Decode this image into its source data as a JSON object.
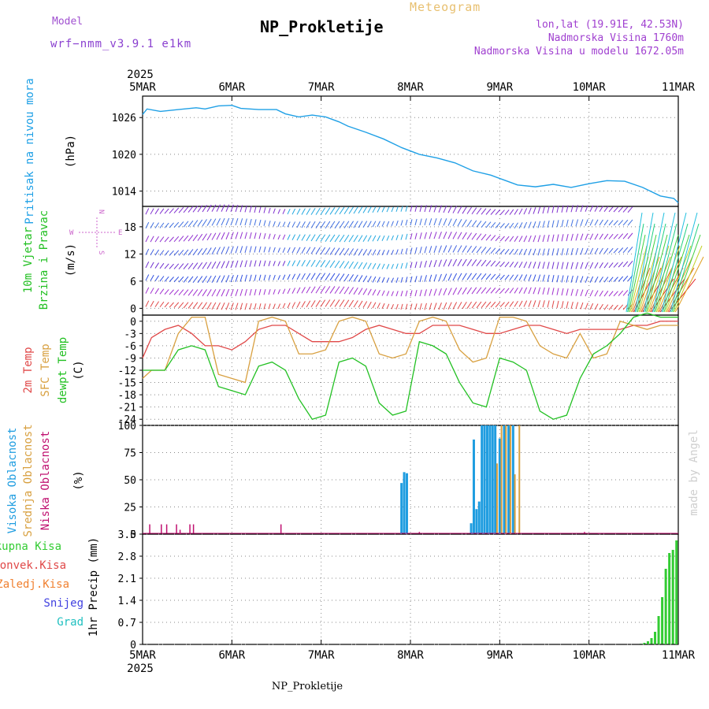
{
  "header": {
    "title": "NP_Prokletije",
    "meteogram_label": "Meteogram",
    "model_label": "Model",
    "model_version": "wrf−nmm_v3.9.1  e1km",
    "lonlat": "lon,lat (19.91E, 42.53N)",
    "altitude": "Nadmorska Visina 1760m",
    "model_altitude": "Nadmorska Visina u modelu 1672.05m"
  },
  "footer": {
    "station": "NP_Prokletije"
  },
  "watermark": "made by Angel",
  "time_axis": {
    "year": "2025",
    "ticks": [
      "5MAR",
      "6MAR",
      "7MAR",
      "8MAR",
      "9MAR",
      "10MAR",
      "11MAR"
    ]
  },
  "colors": {
    "pressure": "#1fa0e6",
    "temp": "#e04848",
    "sfc": "#d8a040",
    "dewpt": "#22c022",
    "high_cloud": "#1f9de0",
    "mid_cloud": "#d8a040",
    "low_cloud": "#c01070",
    "precip_total": "#33cc33",
    "wind_dir_label": "#cc66cc"
  },
  "chart_data": [
    {
      "type": "line",
      "title": "Pritisak na nivou mora",
      "ylabel": "(hPa)",
      "yticks": [
        1014,
        1020,
        1026
      ],
      "ylim": [
        1011.5,
        1029.5
      ],
      "x_days": [
        0,
        0.05,
        0.2,
        0.4,
        0.6,
        0.7,
        0.85,
        1.0,
        1.1,
        1.3,
        1.5,
        1.6,
        1.75,
        1.9,
        2.05,
        2.2,
        2.3,
        2.5,
        2.7,
        2.9,
        3.1,
        3.3,
        3.5,
        3.7,
        3.9,
        4.05,
        4.2,
        4.4,
        4.6,
        4.8,
        5.0,
        5.2,
        5.4,
        5.6,
        5.8,
        5.95,
        6.0
      ],
      "series": [
        {
          "name": "Pritisak na nivou mora",
          "values": [
            1026.5,
            1027.4,
            1027.0,
            1027.3,
            1027.6,
            1027.4,
            1027.9,
            1028.0,
            1027.5,
            1027.3,
            1027.3,
            1026.6,
            1026.1,
            1026.4,
            1026.1,
            1025.3,
            1024.6,
            1023.6,
            1022.5,
            1021.1,
            1020.0,
            1019.4,
            1018.6,
            1017.3,
            1016.6,
            1015.8,
            1015.0,
            1014.7,
            1015.1,
            1014.6,
            1015.2,
            1015.7,
            1015.6,
            1014.6,
            1013.2,
            1012.8,
            1012.1
          ]
        }
      ]
    },
    {
      "type": "scatter",
      "title": "10m Vjetar Brzina i Pravac",
      "ylabel": "(m/s)",
      "yticks": [
        0,
        6,
        12,
        18
      ],
      "ylim": [
        -1.5,
        22.5
      ],
      "direction_legend": [
        "W",
        "N",
        "E",
        "S"
      ]
    },
    {
      "type": "line",
      "title": "2m Temp / SFC Temp / dewpt Temp",
      "ylabel": "(C)",
      "yticks": [
        0,
        -3,
        -6,
        -9,
        -12,
        -15,
        -18,
        -21,
        -24
      ],
      "ylim": [
        -25.5,
        1.5
      ],
      "x_days": [
        0,
        0.1,
        0.25,
        0.4,
        0.55,
        0.7,
        0.85,
        1.0,
        1.15,
        1.3,
        1.45,
        1.6,
        1.75,
        1.9,
        2.05,
        2.2,
        2.35,
        2.5,
        2.65,
        2.8,
        2.95,
        3.1,
        3.25,
        3.4,
        3.55,
        3.7,
        3.85,
        4.0,
        4.15,
        4.3,
        4.45,
        4.6,
        4.75,
        4.9,
        5.05,
        5.2,
        5.35,
        5.5,
        5.65,
        5.8,
        5.95,
        6.0
      ],
      "series": [
        {
          "name": "2m Temp",
          "values": [
            -9,
            -4,
            -2,
            -1,
            -3,
            -6,
            -6,
            -7,
            -5,
            -2,
            -1,
            -1,
            -3,
            -5,
            -5,
            -5,
            -4,
            -2,
            -1,
            -2,
            -3,
            -3,
            -1,
            -1,
            -1,
            -2,
            -3,
            -3,
            -2,
            -1,
            -1,
            -2,
            -3,
            -2,
            -2,
            -2,
            -2,
            -1,
            -1,
            0,
            0,
            0
          ]
        },
        {
          "name": "SFC Temp",
          "values": [
            -14,
            -12,
            -12,
            -3,
            1,
            1,
            -13,
            -14,
            -15,
            0,
            1,
            0,
            -8,
            -8,
            -7,
            0,
            1,
            0,
            -8,
            -9,
            -8,
            0,
            1,
            0,
            -7,
            -10,
            -9,
            1,
            1,
            0,
            -6,
            -8,
            -9,
            -3,
            -9,
            -8,
            0,
            -1,
            -2,
            -1,
            -1,
            -1
          ]
        },
        {
          "name": "dewpt Temp",
          "values": [
            -12,
            -12,
            -12,
            -7,
            -6,
            -7,
            -16,
            -17,
            -18,
            -11,
            -10,
            -12,
            -19,
            -24,
            -23,
            -10,
            -9,
            -11,
            -20,
            -23,
            -22,
            -5,
            -6,
            -8,
            -15,
            -20,
            -21,
            -9,
            -10,
            -12,
            -22,
            -24,
            -23,
            -14,
            -8,
            -6,
            -3,
            1,
            2,
            1,
            1,
            1
          ]
        }
      ]
    },
    {
      "type": "bar",
      "title": "Visoka Oblacnost / Srednja Oblacnost / Niska Oblacnost",
      "ylabel": "(%)",
      "yticks": [
        0,
        25,
        50,
        75,
        100
      ],
      "ylim": [
        0,
        100
      ],
      "series": [
        {
          "name": "Visoka Oblacnost",
          "x_days": [
            2.9,
            2.93,
            2.96,
            3.68,
            3.71,
            3.74,
            3.77,
            3.8,
            3.83,
            3.86,
            3.89,
            3.92,
            3.95,
            4.0,
            4.05,
            4.1,
            4.15
          ],
          "values": [
            47,
            57,
            56,
            10,
            87,
            23,
            30,
            100,
            100,
            100,
            100,
            100,
            100,
            88,
            100,
            100,
            100
          ]
        },
        {
          "name": "Srednja Oblacnost",
          "x_days": [
            3.97,
            4.02,
            4.07,
            4.12,
            4.17,
            4.22
          ],
          "values": [
            65,
            100,
            100,
            100,
            55,
            100
          ]
        },
        {
          "name": "Niska Oblacnost",
          "x_days": [
            0.08,
            0.21,
            0.27,
            0.38,
            0.42,
            0.53,
            0.57,
            1.55,
            3.1,
            4.95,
            5.1
          ],
          "values": [
            9,
            9,
            9,
            9,
            4,
            9,
            9,
            9,
            2,
            2,
            1
          ]
        }
      ]
    },
    {
      "type": "bar",
      "title": "Ukupna Kisa / Konvek.Kisa / Zaledj.Kisa / Snijeg / Grad",
      "ylabel": "1hr Precip (mm)",
      "yticks": [
        0,
        0.7,
        1.4,
        2.1,
        2.8,
        3.5
      ],
      "ylim": [
        0,
        3.5
      ],
      "series": [
        {
          "name": "Ukupna Kisa",
          "x_days": [
            5.58,
            5.62,
            5.66,
            5.7,
            5.74,
            5.78,
            5.82,
            5.86,
            5.9,
            5.94,
            5.98
          ],
          "values": [
            0.02,
            0.05,
            0.1,
            0.2,
            0.4,
            0.9,
            1.5,
            2.4,
            2.9,
            3.0,
            3.3
          ]
        }
      ],
      "legend": [
        "Ukupna Kisa",
        "Konvek.Kisa",
        "Zaledj.Kisa",
        "Snijeg",
        "Grad"
      ]
    }
  ]
}
